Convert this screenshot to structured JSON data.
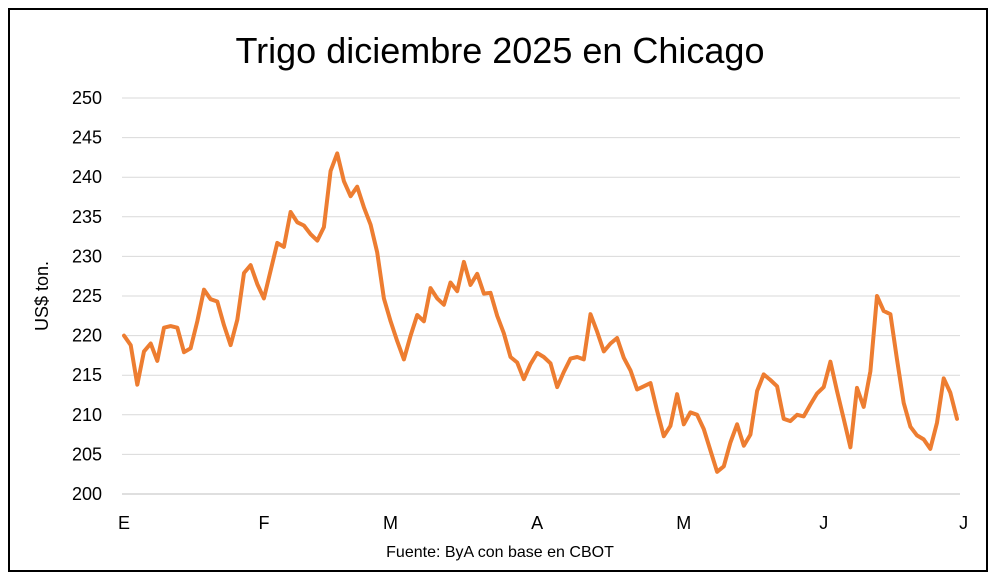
{
  "chart_data": {
    "type": "line",
    "title": "Trigo diciembre 2025 en Chicago",
    "ylabel": "US$ ton.",
    "xlabel": "",
    "source": "Fuente: ByA con base en CBOT",
    "ylim": [
      200,
      250
    ],
    "yticks": [
      200,
      205,
      210,
      215,
      220,
      225,
      230,
      235,
      240,
      245,
      250
    ],
    "xticks": [
      {
        "label": "E",
        "index": 0
      },
      {
        "label": "F",
        "index": 21
      },
      {
        "label": "M",
        "index": 40
      },
      {
        "label": "A",
        "index": 62
      },
      {
        "label": "M",
        "index": 84
      },
      {
        "label": "J",
        "index": 105
      },
      {
        "label": "J",
        "index": 126
      }
    ],
    "grid": true,
    "legend": "none",
    "color": "#ED7D31",
    "series": [
      {
        "name": "",
        "values": [
          220.0,
          218.8,
          213.8,
          218.0,
          219.0,
          216.8,
          221.0,
          221.2,
          221.0,
          217.9,
          218.4,
          221.8,
          225.8,
          224.6,
          224.3,
          221.3,
          218.8,
          222.0,
          227.9,
          228.9,
          226.5,
          224.7,
          228.2,
          231.7,
          231.2,
          235.6,
          234.3,
          233.9,
          232.8,
          232.0,
          233.7,
          240.8,
          243.0,
          239.5,
          237.6,
          238.8,
          236.2,
          234.0,
          230.5,
          224.7,
          221.8,
          219.3,
          217.0,
          220.0,
          222.6,
          221.8,
          226.0,
          224.7,
          223.9,
          226.7,
          225.6,
          229.3,
          226.4,
          227.8,
          225.3,
          225.4,
          222.5,
          220.3,
          217.3,
          216.6,
          214.5,
          216.4,
          217.8,
          217.3,
          216.5,
          213.5,
          215.4,
          217.1,
          217.3,
          217.0,
          222.7,
          220.5,
          218.0,
          219.0,
          219.7,
          217.2,
          215.6,
          213.2,
          213.6,
          214.0,
          210.5,
          207.3,
          208.6,
          212.6,
          208.8,
          210.3,
          210.0,
          208.2,
          205.5,
          202.8,
          203.5,
          206.5,
          208.8,
          206.1,
          207.5,
          213.0,
          215.1,
          214.4,
          213.6,
          209.5,
          209.2,
          210.0,
          209.8,
          211.3,
          212.7,
          213.5,
          216.7,
          213.0,
          209.5,
          205.9,
          213.4,
          211.0,
          215.5,
          225.0,
          223.1,
          222.7,
          217.0,
          211.5,
          208.5,
          207.4,
          206.9,
          205.7,
          209.0,
          214.6,
          212.8,
          209.5
        ]
      }
    ]
  }
}
